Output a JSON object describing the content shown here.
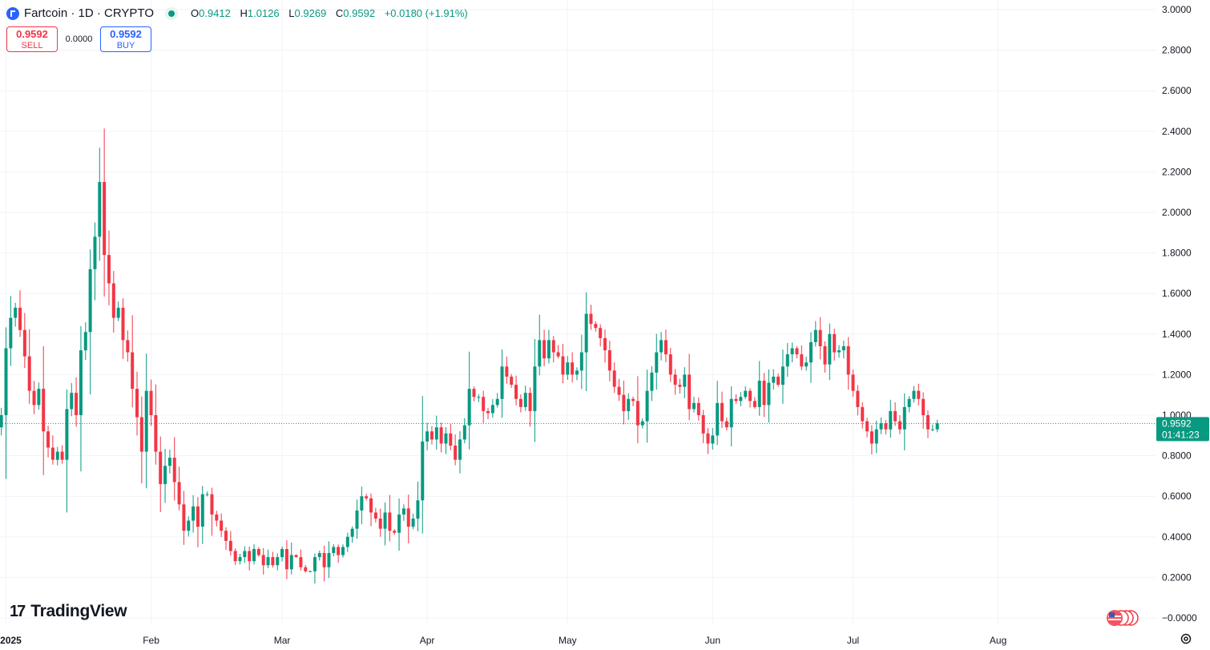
{
  "header": {
    "symbol": "Fartcoin · 1D · CRYPTO",
    "open_label": "O",
    "open": "0.9412",
    "high_label": "H",
    "high": "1.0126",
    "low_label": "L",
    "low": "0.9269",
    "close_label": "C",
    "close": "0.9592",
    "change": "+0.0180 (+1.91%)"
  },
  "trade": {
    "sell_price": "0.9592",
    "sell_label": "SELL",
    "spread": "0.0000",
    "buy_price": "0.9592",
    "buy_label": "BUY"
  },
  "branding": {
    "logo_text": "TradingView"
  },
  "icons": {
    "symbol": "coin-icon",
    "visibility": "eye-icon",
    "flag": "us-flag-icon",
    "settings": "gear-icon"
  },
  "colors": {
    "up": "#089981",
    "down": "#f23645",
    "grid": "#f0f3fa",
    "axis_text": "#131722"
  },
  "price_label": {
    "price": "0.9592",
    "countdown": "01:41:23"
  },
  "chart_data": {
    "type": "candlestick",
    "title": "Fartcoin · 1D · CRYPTO",
    "y_ticks": [
      "3.0000",
      "2.8000",
      "2.6000",
      "2.4000",
      "2.2000",
      "2.0000",
      "1.8000",
      "1.6000",
      "1.4000",
      "1.2000",
      "1.0000",
      "0.8000",
      "0.6000",
      "0.4000",
      "0.2000",
      "−0.0000"
    ],
    "y_tick_values": [
      3.0,
      2.8,
      2.6,
      2.4,
      2.2,
      2.0,
      1.8,
      1.6,
      1.4,
      1.2,
      1.0,
      0.8,
      0.6,
      0.4,
      0.2,
      0.0
    ],
    "ylim": [
      0,
      3.0
    ],
    "x_ticks": [
      {
        "label": "2025",
        "day": 0
      },
      {
        "label": "Feb",
        "day": 31
      },
      {
        "label": "Mar",
        "day": 59
      },
      {
        "label": "Apr",
        "day": 90
      },
      {
        "label": "May",
        "day": 120
      },
      {
        "label": "Jun",
        "day": 151
      },
      {
        "label": "Jul",
        "day": 181
      },
      {
        "label": "Aug",
        "day": 212
      }
    ],
    "first_candle_day": -3,
    "last_price": 0.9592,
    "closes": [
      0.87,
      0.94,
      1.0,
      1.33,
      1.48,
      1.53,
      1.42,
      1.29,
      1.12,
      1.05,
      1.13,
      0.92,
      0.84,
      0.78,
      0.82,
      0.78,
      1.03,
      1.11,
      1.0,
      1.32,
      1.41,
      1.72,
      1.88,
      2.15,
      1.79,
      1.65,
      1.48,
      1.53,
      1.37,
      1.31,
      1.13,
      0.99,
      0.82,
      1.12,
      1.0,
      0.82,
      0.66,
      0.75,
      0.79,
      0.67,
      0.56,
      0.43,
      0.48,
      0.55,
      0.45,
      0.61,
      0.61,
      0.51,
      0.48,
      0.43,
      0.38,
      0.33,
      0.28,
      0.3,
      0.33,
      0.28,
      0.34,
      0.31,
      0.26,
      0.3,
      0.26,
      0.3,
      0.34,
      0.24,
      0.31,
      0.3,
      0.25,
      0.23,
      0.23,
      0.3,
      0.32,
      0.25,
      0.32,
      0.35,
      0.31,
      0.35,
      0.4,
      0.44,
      0.53,
      0.6,
      0.59,
      0.52,
      0.49,
      0.44,
      0.52,
      0.43,
      0.42,
      0.51,
      0.54,
      0.45,
      0.49,
      0.58,
      0.87,
      0.92,
      0.88,
      0.94,
      0.86,
      0.91,
      0.85,
      0.78,
      0.88,
      0.95,
      1.13,
      1.09,
      1.09,
      1.02,
      1.01,
      1.05,
      1.08,
      1.24,
      1.19,
      1.15,
      1.08,
      1.04,
      1.11,
      1.02,
      1.24,
      1.37,
      1.28,
      1.37,
      1.31,
      1.29,
      1.2,
      1.26,
      1.2,
      1.22,
      1.31,
      1.5,
      1.45,
      1.43,
      1.38,
      1.32,
      1.22,
      1.14,
      1.1,
      1.02,
      1.08,
      1.07,
      0.95,
      0.97,
      1.12,
      1.21,
      1.31,
      1.37,
      1.3,
      1.2,
      1.15,
      1.14,
      1.2,
      1.03,
      1.06,
      1.0,
      0.91,
      0.86,
      0.9,
      1.06,
      0.97,
      0.94,
      1.08,
      1.07,
      1.09,
      1.12,
      1.07,
      1.04,
      1.17,
      1.05,
      1.16,
      1.19,
      1.15,
      1.24,
      1.3,
      1.33,
      1.3,
      1.24,
      1.26,
      1.36,
      1.42,
      1.34,
      1.25,
      1.4,
      1.31,
      1.32,
      1.34,
      1.2,
      1.12,
      1.04,
      0.97,
      0.92,
      0.86,
      0.93,
      0.96,
      0.93,
      1.02,
      0.97,
      0.93,
      1.04,
      1.08,
      1.12,
      1.08,
      1.0,
      0.93,
      0.93,
      0.96
    ],
    "days_shown": 226
  }
}
